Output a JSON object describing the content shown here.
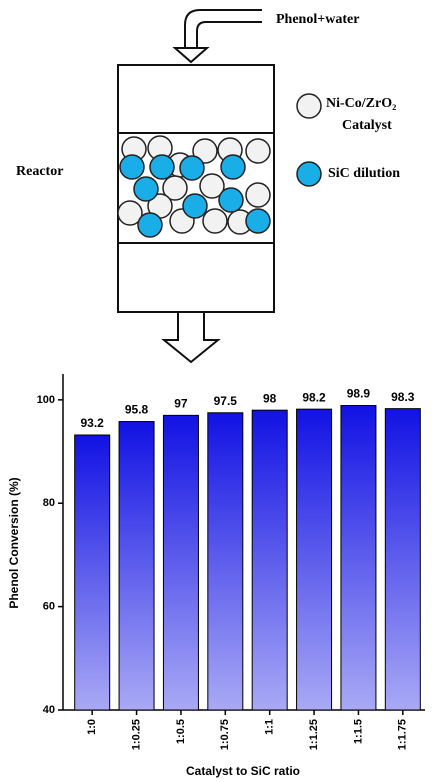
{
  "diagram": {
    "inlet": "Phenol+water",
    "catalyst_name": "Ni-Co/ZrO₂",
    "catalyst_word": "Catalyst",
    "dilution": "SiC dilution",
    "reactor": "Reactor"
  },
  "chart_data": {
    "type": "bar",
    "y_label": "Phenol Conversion (%)",
    "x_label": "Catalyst to SiC ratio",
    "categories": [
      "1:0",
      "1:0.25",
      "1:0.5",
      "1:0.75",
      "1:1",
      "1:1.25",
      "1:1.5",
      "1:1.75"
    ],
    "values": [
      93.2,
      95.8,
      97,
      97.5,
      98,
      98.2,
      98.9,
      98.3
    ],
    "gradient": [
      "#1212e4",
      "#a9a9f5"
    ],
    "ylim": [
      40,
      105
    ],
    "yticks": [
      40,
      60,
      80,
      100
    ]
  }
}
